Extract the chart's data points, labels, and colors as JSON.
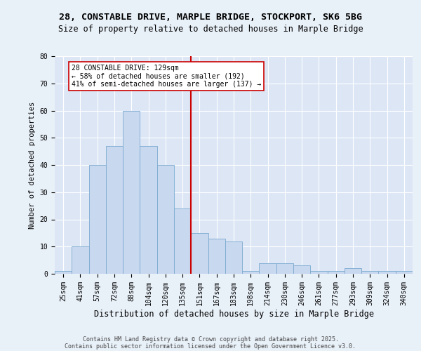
{
  "title_line1": "28, CONSTABLE DRIVE, MARPLE BRIDGE, STOCKPORT, SK6 5BG",
  "title_line2": "Size of property relative to detached houses in Marple Bridge",
  "xlabel": "Distribution of detached houses by size in Marple Bridge",
  "ylabel": "Number of detached properties",
  "bar_color": "#c8d8ef",
  "bar_edge_color": "#7aaad0",
  "background_color": "#dce6f5",
  "grid_color": "#ffffff",
  "fig_background": "#e8f0f8",
  "categories": [
    "25sqm",
    "41sqm",
    "57sqm",
    "72sqm",
    "88sqm",
    "104sqm",
    "120sqm",
    "135sqm",
    "151sqm",
    "167sqm",
    "183sqm",
    "198sqm",
    "214sqm",
    "230sqm",
    "246sqm",
    "261sqm",
    "277sqm",
    "293sqm",
    "309sqm",
    "324sqm",
    "340sqm"
  ],
  "values": [
    1,
    10,
    40,
    47,
    60,
    47,
    40,
    24,
    15,
    13,
    12,
    1,
    4,
    4,
    3,
    1,
    1,
    2,
    1,
    1,
    1
  ],
  "ylim": [
    0,
    80
  ],
  "yticks": [
    0,
    10,
    20,
    30,
    40,
    50,
    60,
    70,
    80
  ],
  "vline_x": 7.5,
  "vline_color": "#cc0000",
  "annotation_text": "28 CONSTABLE DRIVE: 129sqm\n← 58% of detached houses are smaller (192)\n41% of semi-detached houses are larger (137) →",
  "annotation_box_color": "#ffffff",
  "annotation_box_edge": "#cc0000",
  "footer_line1": "Contains HM Land Registry data © Crown copyright and database right 2025.",
  "footer_line2": "Contains public sector information licensed under the Open Government Licence v3.0.",
  "title_fontsize": 9.5,
  "subtitle_fontsize": 8.5,
  "xlabel_fontsize": 8.5,
  "ylabel_fontsize": 7.5,
  "tick_fontsize": 7,
  "annotation_fontsize": 7,
  "footer_fontsize": 6
}
